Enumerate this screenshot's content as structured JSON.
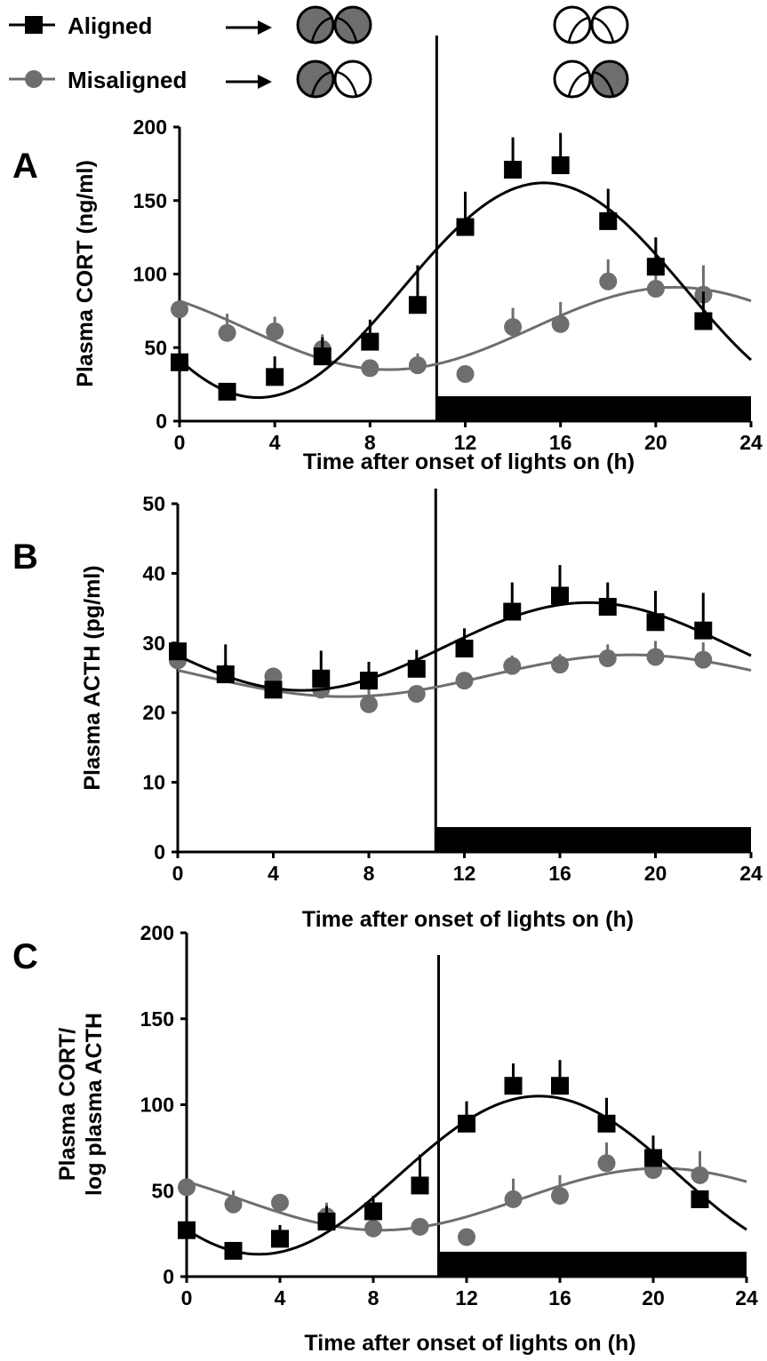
{
  "legend": {
    "aligned_label": "Aligned",
    "misaligned_label": "Misaligned",
    "aligned_color": "#000000",
    "misaligned_color": "#6e6e6e",
    "aligned_icons": [
      {
        "left": "dark",
        "right": "dark"
      },
      {
        "left": "light",
        "right": "light"
      }
    ],
    "misaligned_icons": [
      {
        "left": "dark",
        "right": "light"
      },
      {
        "left": "light",
        "right": "dark"
      }
    ],
    "icon_dark_fill": "#6e6e6e",
    "icon_light_fill": "#ffffff"
  },
  "chart_data": [
    {
      "type": "scatter",
      "panel_letter": "A",
      "title": "",
      "ylabel": [
        "Plasma CORT (ng/ml)"
      ],
      "xlabel": "Time after onset of lights on (h)",
      "xlim": [
        0,
        24
      ],
      "ylim": [
        0,
        200
      ],
      "xticks": [
        0,
        4,
        8,
        12,
        16,
        20,
        24
      ],
      "yticks": [
        0,
        50,
        100,
        150,
        200
      ],
      "lights_off_at": 10.8,
      "dark_bar": [
        10.8,
        24
      ],
      "x": [
        0,
        2,
        4,
        6,
        8,
        10,
        12,
        14,
        16,
        18,
        20,
        22
      ],
      "series": [
        {
          "name": "Aligned",
          "marker": "square",
          "color": "#000000",
          "values": [
            40,
            20,
            30,
            44,
            54,
            79,
            132,
            171,
            174,
            136,
            105,
            68
          ],
          "errors": [
            9,
            0,
            14,
            13,
            15,
            27,
            24,
            22,
            22,
            22,
            20,
            20
          ],
          "fit": {
            "mesor": 89,
            "amplitude": 73,
            "peak": 15.3
          }
        },
        {
          "name": "Misaligned",
          "marker": "circle",
          "color": "#6e6e6e",
          "values": [
            76,
            60,
            61,
            49,
            36,
            38,
            32,
            64,
            66,
            95,
            90,
            86
          ],
          "errors": [
            0,
            13,
            10,
            10,
            0,
            8,
            0,
            13,
            15,
            15,
            29,
            20
          ],
          "fit": {
            "mesor": 63,
            "amplitude": 28,
            "peak": 20.8
          }
        }
      ]
    },
    {
      "type": "scatter",
      "panel_letter": "B",
      "title": "",
      "ylabel": [
        "Plasma ACTH (pg/ml)"
      ],
      "xlabel": "Time after onset of lights on (h)",
      "xlim": [
        0,
        24
      ],
      "ylim": [
        0,
        50
      ],
      "xticks": [
        0,
        4,
        8,
        12,
        16,
        20,
        24
      ],
      "yticks": [
        0,
        10,
        20,
        30,
        40,
        50
      ],
      "lights_off_at": 10.8,
      "dark_bar": [
        10.8,
        24
      ],
      "x": [
        0,
        2,
        4,
        6,
        8,
        10,
        12,
        14,
        16,
        18,
        20,
        22
      ],
      "series": [
        {
          "name": "Aligned",
          "marker": "square",
          "color": "#000000",
          "values": [
            28.8,
            25.5,
            23.3,
            24.9,
            24.6,
            26.3,
            29.2,
            34.5,
            36.8,
            35.2,
            33.0,
            31.8
          ],
          "errors": [
            1.0,
            4.3,
            0,
            4.0,
            2.7,
            2.7,
            2.9,
            4.2,
            4.4,
            3.5,
            4.5,
            5.4
          ],
          "fit": {
            "mesor": 29.5,
            "amplitude": 6.3,
            "peak": 17.2
          }
        },
        {
          "name": "Misaligned",
          "marker": "circle",
          "color": "#6e6e6e",
          "values": [
            27.5,
            25.6,
            25.2,
            23.3,
            21.2,
            22.7,
            24.6,
            26.7,
            26.9,
            27.8,
            28.0,
            27.6
          ],
          "errors": [
            0,
            2.0,
            0,
            2.0,
            2.2,
            0,
            0,
            1.5,
            1.5,
            2.0,
            2.3,
            2.5
          ],
          "fit": {
            "mesor": 25.3,
            "amplitude": 3.0,
            "peak": 19.0
          }
        }
      ]
    },
    {
      "type": "scatter",
      "panel_letter": "C",
      "title": "",
      "ylabel": [
        "Plasma CORT/",
        "log plasma ACTH"
      ],
      "xlabel": "Time after onset of lights on (h)",
      "xlim": [
        0,
        24
      ],
      "ylim": [
        0,
        200
      ],
      "xticks": [
        0,
        4,
        8,
        12,
        16,
        20,
        24
      ],
      "yticks": [
        0,
        50,
        100,
        150,
        200
      ],
      "lights_off_at": 10.8,
      "dark_bar": [
        10.8,
        24
      ],
      "x": [
        0,
        2,
        4,
        6,
        8,
        10,
        12,
        14,
        16,
        18,
        20,
        22
      ],
      "series": [
        {
          "name": "Aligned",
          "marker": "square",
          "color": "#000000",
          "values": [
            27,
            15,
            22,
            32,
            38,
            53,
            89,
            111,
            111,
            89,
            69,
            45
          ],
          "errors": [
            0,
            0,
            8,
            9,
            9,
            18,
            13,
            13,
            15,
            15,
            13,
            0
          ],
          "fit": {
            "mesor": 59,
            "amplitude": 46,
            "peak": 15.1
          }
        },
        {
          "name": "Misaligned",
          "marker": "circle",
          "color": "#6e6e6e",
          "values": [
            52,
            42,
            43,
            35,
            28,
            29,
            23,
            45,
            47,
            66,
            62,
            59
          ],
          "errors": [
            0,
            8,
            0,
            8,
            0,
            5,
            0,
            12,
            12,
            12,
            20,
            14
          ],
          "fit": {
            "mesor": 45,
            "amplitude": 18,
            "peak": 20.3
          }
        }
      ]
    }
  ]
}
